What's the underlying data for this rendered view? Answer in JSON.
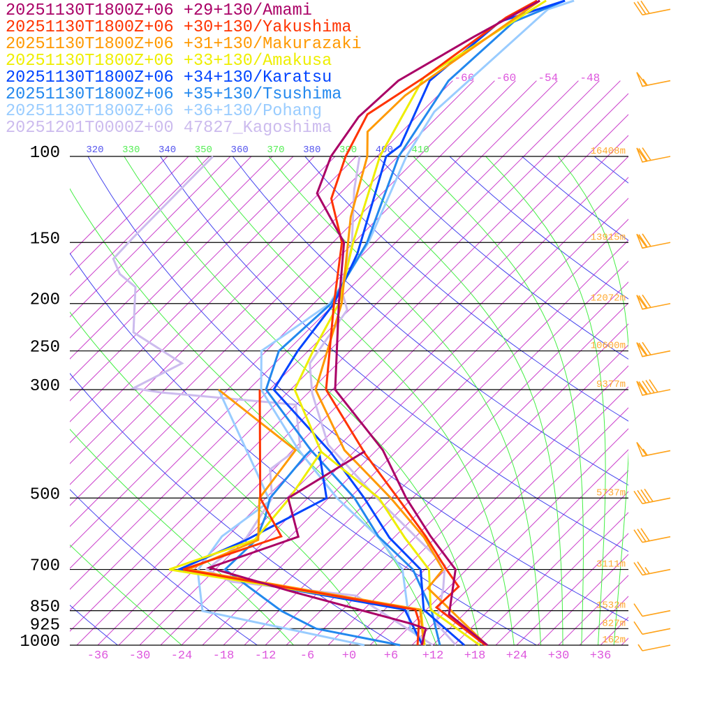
{
  "chart_data": {
    "type": "line",
    "subtype": "skew-T log-p sounding",
    "xlabel": "",
    "ylabel": "",
    "pressure_levels": [
      100,
      150,
      200,
      250,
      300,
      500,
      700,
      850,
      925,
      1000
    ],
    "pressure_labels": [
      "100",
      "150",
      "200",
      "250",
      "300",
      "500",
      "700",
      "850",
      "925",
      "1000"
    ],
    "x_ticks": [
      "-36",
      "-30",
      "-24",
      "-18",
      "-12",
      "-6",
      "+0",
      "+6",
      "+12",
      "+18",
      "+24",
      "+30",
      "+36"
    ],
    "x_tick_values": [
      -36,
      -30,
      -24,
      -18,
      -12,
      -6,
      0,
      6,
      12,
      18,
      24,
      30,
      36
    ],
    "top_isotherm_labels": [
      "-66",
      "-60",
      "-54",
      "-48"
    ],
    "top_isotherm_values": [
      -66,
      -60,
      -54,
      -48
    ],
    "theta_labels": [
      {
        "text": "320",
        "value": 320,
        "kind": "dry"
      },
      {
        "text": "330",
        "value": 330,
        "kind": "moist"
      },
      {
        "text": "340",
        "value": 340,
        "kind": "dry"
      },
      {
        "text": "350",
        "value": 350,
        "kind": "moist"
      },
      {
        "text": "360",
        "value": 360,
        "kind": "dry"
      },
      {
        "text": "370",
        "value": 370,
        "kind": "moist"
      },
      {
        "text": "380",
        "value": 380,
        "kind": "dry"
      },
      {
        "text": "390",
        "value": 390,
        "kind": "moist"
      },
      {
        "text": "400",
        "value": 400,
        "kind": "dry"
      },
      {
        "text": "410",
        "value": 410,
        "kind": "moist"
      }
    ],
    "heights": [
      {
        "p": 100,
        "label": "16408m"
      },
      {
        "p": 150,
        "label": "13915m"
      },
      {
        "p": 200,
        "label": "12072m"
      },
      {
        "p": 250,
        "label": "10600m"
      },
      {
        "p": 300,
        "label": "9377m"
      },
      {
        "p": 500,
        "label": "5737m"
      },
      {
        "p": 700,
        "label": "3111m"
      },
      {
        "p": 850,
        "label": "1532m"
      },
      {
        "p": 925,
        "label": "827m"
      },
      {
        "p": 1000,
        "label": "162m"
      }
    ],
    "winds_kt": [
      {
        "p": 50,
        "speed": 30
      },
      {
        "p": 70,
        "speed": 55
      },
      {
        "p": 100,
        "speed": 70
      },
      {
        "p": 150,
        "speed": 70
      },
      {
        "p": 200,
        "speed": 70
      },
      {
        "p": 250,
        "speed": 70
      },
      {
        "p": 300,
        "speed": 90
      },
      {
        "p": 400,
        "speed": 55
      },
      {
        "p": 500,
        "speed": 40
      },
      {
        "p": 600,
        "speed": 30
      },
      {
        "p": 700,
        "speed": 25
      },
      {
        "p": 850,
        "speed": 10
      },
      {
        "p": 925,
        "speed": 10
      },
      {
        "p": 1000,
        "speed": 5
      }
    ],
    "colors": {
      "isotherm": "#cc44cc",
      "dry_adiabat": "#4444ee",
      "moist_adiabat": "#44ee44",
      "isobar": "#000000",
      "tick": "#dd55dd",
      "height": "#ffaa33",
      "wind": "#ffa31a"
    },
    "series": [
      {
        "name": "20251130T1800Z+06 +29+130/Amami",
        "color": "#aa0066",
        "temperature": [
          [
            1000,
            19.8
          ],
          [
            865,
            9.9
          ],
          [
            700,
            4.4
          ],
          [
            599,
            -3.9
          ],
          [
            500,
            -12.9
          ],
          [
            399,
            -23.1
          ],
          [
            300,
            -38.6
          ],
          [
            200,
            -50.4
          ],
          [
            150,
            -58.4
          ],
          [
            119,
            -69.3
          ],
          [
            100,
            -72.6
          ],
          [
            83,
            -74.3
          ],
          [
            70,
            -73.8
          ],
          [
            57,
            -69.3
          ],
          [
            48,
            -65
          ]
        ],
        "dewpoint": [
          [
            1000,
            10.4
          ],
          [
            925,
            8.6
          ],
          [
            903,
            5.7
          ],
          [
            776,
            -16
          ],
          [
            694,
            -31.1
          ],
          [
            600,
            -22.8
          ],
          [
            500,
            -29.8
          ],
          [
            401,
            -25.5
          ]
        ]
      },
      {
        "name": "20251130T1800Z+06 +30+130/Yakushima",
        "color": "#ff3300",
        "temperature": [
          [
            1000,
            19.5
          ],
          [
            837,
            7.1
          ],
          [
            759,
            7.3
          ],
          [
            700,
            3.1
          ],
          [
            599,
            -4.6
          ],
          [
            500,
            -14.1
          ],
          [
            406,
            -25.1
          ],
          [
            300,
            -39.9
          ],
          [
            200,
            -51.1
          ],
          [
            150,
            -58.7
          ],
          [
            122,
            -66.5
          ],
          [
            100,
            -70.5
          ],
          [
            82,
            -73.4
          ],
          [
            69,
            -70.6
          ],
          [
            52,
            -67.4
          ],
          [
            48,
            -65.4
          ]
        ],
        "dewpoint": [
          [
            1000,
            9.8
          ],
          [
            894,
            6.6
          ],
          [
            846,
            4.4
          ],
          [
            700,
            -34.6
          ],
          [
            599,
            -25.3
          ],
          [
            500,
            -33.8
          ],
          [
            300,
            -49.4
          ]
        ]
      },
      {
        "name": "20251130T1800Z+06 +31+130/Makurazaki",
        "color": "#ff9900",
        "temperature": [
          [
            1000,
            19.7
          ],
          [
            764,
            3.1
          ],
          [
            700,
            2.6
          ],
          [
            602,
            -4.7
          ],
          [
            500,
            -15.1
          ],
          [
            399,
            -28.6
          ],
          [
            300,
            -41.4
          ],
          [
            200,
            -50
          ],
          [
            133,
            -61.1
          ],
          [
            100,
            -67.4
          ],
          [
            89,
            -70.9
          ],
          [
            75,
            -70.7
          ],
          [
            48,
            -65
          ]
        ],
        "dewpoint": [
          [
            1000,
            10.7
          ],
          [
            846,
            5.1
          ],
          [
            700,
            -33.9
          ],
          [
            609,
            -28.1
          ],
          [
            500,
            -33.9
          ],
          [
            399,
            -35.6
          ],
          [
            300,
            -55.3
          ]
        ]
      },
      {
        "name": "20251130T1800Z+06 +33+130/Amakusa",
        "color": "#eeee00",
        "temperature": [
          [
            1000,
            18.7
          ],
          [
            846,
            6.6
          ],
          [
            700,
            0.6
          ],
          [
            603,
            -7.4
          ],
          [
            500,
            -16.8
          ],
          [
            402,
            -31.7
          ],
          [
            300,
            -44.4
          ],
          [
            250,
            -47.3
          ],
          [
            200,
            -50.4
          ],
          [
            150,
            -57.1
          ],
          [
            100,
            -65.6
          ],
          [
            69,
            -70.6
          ],
          [
            48,
            -64.1
          ]
        ],
        "dewpoint": [
          [
            1000,
            10.8
          ],
          [
            846,
            5.2
          ],
          [
            700,
            -36.6
          ],
          [
            609,
            -28.6
          ],
          [
            500,
            -29.6
          ],
          [
            402,
            -31.7
          ]
        ]
      },
      {
        "name": "20251130T1800Z+06 +34+130/Karatsu",
        "color": "#0044ff",
        "temperature": [
          [
            1000,
            16.5
          ],
          [
            846,
            5.6
          ],
          [
            700,
            -0.6
          ],
          [
            603,
            -9.6
          ],
          [
            500,
            -18.9
          ],
          [
            402,
            -30.4
          ],
          [
            300,
            -47.4
          ],
          [
            250,
            -49.5
          ],
          [
            200,
            -51.1
          ],
          [
            158,
            -54.9
          ],
          [
            100,
            -64.7
          ],
          [
            95,
            -64.2
          ],
          [
            70,
            -69.3
          ],
          [
            53,
            -67.7
          ],
          [
            48,
            -61.4
          ]
        ],
        "dewpoint": [
          [
            1000,
            10.5
          ],
          [
            846,
            2.9
          ],
          [
            700,
            -35.2
          ],
          [
            609,
            -29.8
          ],
          [
            500,
            -24.3
          ],
          [
            402,
            -32
          ]
        ]
      },
      {
        "name": "20251130T1800Z+06 +35+130/Tsushima",
        "color": "#2288ee",
        "temperature": [
          [
            1000,
            13
          ],
          [
            846,
            6.7
          ],
          [
            700,
            -1.7
          ],
          [
            599,
            -11.4
          ],
          [
            500,
            -20.3
          ],
          [
            399,
            -33.4
          ],
          [
            300,
            -48.5
          ],
          [
            250,
            -52.2
          ],
          [
            200,
            -51.5
          ],
          [
            150,
            -55.1
          ],
          [
            100,
            -62.9
          ],
          [
            70,
            -66.6
          ],
          [
            53,
            -65.7
          ],
          [
            48,
            -61.4
          ]
        ],
        "dewpoint": [
          [
            1000,
            7.3
          ],
          [
            925,
            -7.1
          ],
          [
            851,
            -14.6
          ],
          [
            700,
            -28.6
          ],
          [
            609,
            -28.4
          ],
          [
            546,
            -30.4
          ],
          [
            500,
            -32.4
          ],
          [
            410,
            -33.4
          ],
          [
            399,
            -33.4
          ]
        ]
      },
      {
        "name": "20251130T1800Z+06 +36+130/Pohang",
        "color": "#99ccff",
        "temperature": [
          [
            1000,
            11
          ],
          [
            925,
            6.4
          ],
          [
            700,
            -3.2
          ],
          [
            603,
            -11.1
          ],
          [
            500,
            -22.8
          ],
          [
            397,
            -35.4
          ],
          [
            300,
            -49.2
          ],
          [
            250,
            -54.7
          ],
          [
            200,
            -51.7
          ],
          [
            150,
            -54.9
          ],
          [
            100,
            -61.8
          ],
          [
            81,
            -64.2
          ],
          [
            50,
            -62.6
          ],
          [
            48,
            -60.1
          ]
        ],
        "dewpoint": [
          [
            1000,
            2.2
          ],
          [
            851,
            -25.9
          ],
          [
            703,
            -32.4
          ],
          [
            599,
            -33.8
          ],
          [
            507,
            -32
          ],
          [
            300,
            -55.3
          ]
        ]
      },
      {
        "name": "20251201T0000Z+00 47827_Kagoshima",
        "color": "#ccbbee",
        "temperature": [
          [
            1000,
            15.3
          ],
          [
            903,
            9.4
          ],
          [
            764,
            5.3
          ],
          [
            687,
            2.3
          ],
          [
            603,
            -5.7
          ],
          [
            500,
            -17.1
          ],
          [
            389,
            -31.7
          ],
          [
            305,
            -41.4
          ],
          [
            265,
            -46
          ],
          [
            206,
            -48.3
          ],
          [
            185,
            -52.5
          ],
          [
            153,
            -56.7
          ],
          [
            117,
            -64.5
          ],
          [
            100,
            -68.5
          ]
        ],
        "dewpoint": [
          [
            1000,
            12
          ],
          [
            792,
            -6.1
          ],
          [
            741,
            -26.1
          ],
          [
            700,
            -31.2
          ],
          [
            603,
            -30.1
          ],
          [
            500,
            -32.1
          ],
          [
            437,
            -36.5
          ],
          [
            393,
            -35.4
          ],
          [
            322,
            -42.1
          ],
          [
            304,
            -63.2
          ],
          [
            298,
            -67.7
          ],
          [
            265,
            -64.3
          ],
          [
            229,
            -75.7
          ],
          [
            185,
            -81.9
          ],
          [
            174,
            -86
          ],
          [
            162,
            -89.1
          ],
          [
            147,
            -89.3
          ],
          [
            100,
            -89.5
          ]
        ]
      }
    ]
  }
}
